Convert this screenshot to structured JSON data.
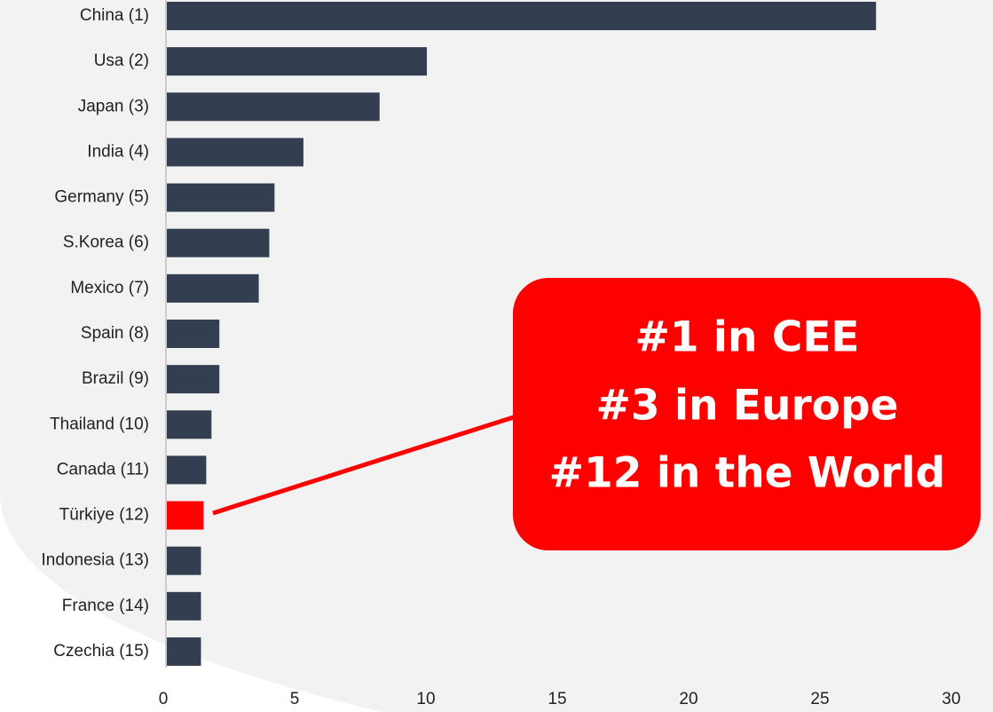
{
  "chart_data": {
    "type": "hbar",
    "categories": [
      "China (1)",
      "Usa (2)",
      "Japan (3)",
      "India (4)",
      "Germany (5)",
      "S.Korea (6)",
      "Mexico (7)",
      "Spain (8)",
      "Brazil (9)",
      "Thailand (10)",
      "Canada (11)",
      "Türkiye (12)",
      "Indonesia (13)",
      "France (14)",
      "Czechia (15)"
    ],
    "values": [
      27.0,
      9.9,
      8.1,
      5.2,
      4.1,
      3.9,
      3.5,
      2.0,
      2.0,
      1.7,
      1.5,
      1.4,
      1.3,
      1.3,
      1.3
    ],
    "colors": [
      "#333f50",
      "#333f50",
      "#333f50",
      "#333f50",
      "#333f50",
      "#333f50",
      "#333f50",
      "#333f50",
      "#333f50",
      "#333f50",
      "#333f50",
      "#ff0000",
      "#333f50",
      "#333f50",
      "#333f50"
    ],
    "xlim": [
      0,
      30
    ],
    "xticks": [
      0,
      5,
      10,
      15,
      20,
      25,
      30
    ],
    "grid": false,
    "annotation": [
      "#1 in CEE",
      "#3 in Europe",
      "#12 in the World"
    ],
    "annotation_color": "#ff0000"
  }
}
